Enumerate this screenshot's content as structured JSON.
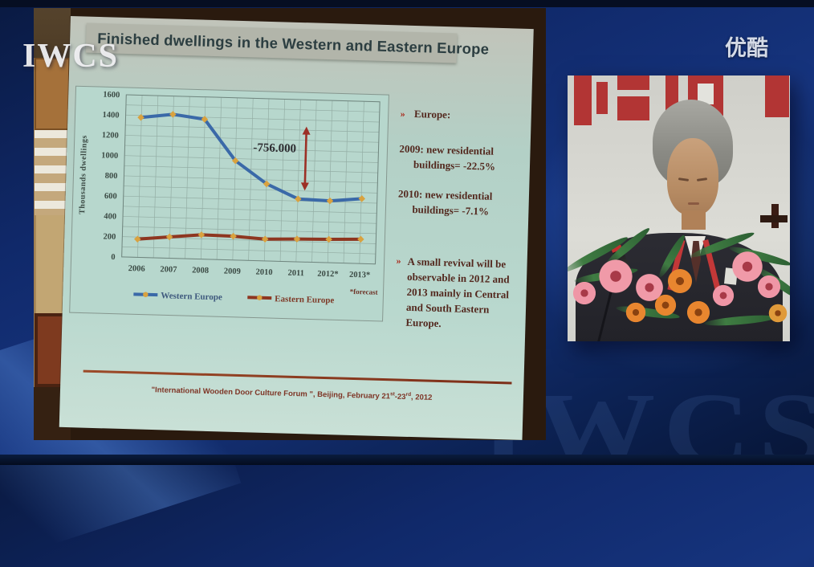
{
  "watermarks": {
    "iwcs_top": "IWCS",
    "iwcs_faint": "IWCS",
    "youku": "优酷"
  },
  "slide": {
    "title": "Finished dwellings in the Western and Eastern Europe",
    "right_panel": {
      "bullet_char": "»",
      "europe_heading": "Europe:",
      "line_2009_a": "2009: new residential",
      "line_2009_b": "buildings= -22.5%",
      "line_2010_a": "2010: new residential",
      "line_2010_b": "buildings= -7.1%",
      "revival_l1": "A small revival will be",
      "revival_l2": "observable in 2012 and",
      "revival_l3": "2013 mainly in Central",
      "revival_l4": "and South Eastern",
      "revival_l5": "Europe."
    },
    "footer": {
      "p1": "\"International Wooden Door Culture Forum \", Beijing, February 21",
      "sup1": "st",
      "p2": "-23",
      "sup2": "rd",
      "p3": ", 2012"
    }
  },
  "chart_data": {
    "type": "line",
    "title": "Finished dwellings in the Western and Eastern Europe",
    "ylabel": "Thousands dwellings",
    "categories": [
      "2006",
      "2007",
      "2008",
      "2009",
      "2010",
      "2011",
      "2012*",
      "2013*"
    ],
    "series": [
      {
        "name": "Western Europe",
        "color": "#3a69a8",
        "values": [
          1380,
          1420,
          1380,
          980,
          760,
          620,
          610,
          640
        ]
      },
      {
        "name": "Eastern Europe",
        "color": "#8e3620",
        "values": [
          180,
          210,
          240,
          235,
          215,
          225,
          230,
          240
        ]
      }
    ],
    "ylim": [
      0,
      1600
    ],
    "ytick_step": 200,
    "grid": true,
    "legend_position": "bottom",
    "marker_color": "#d9a23f",
    "annotation": {
      "text": "-756.000",
      "category": "2011",
      "from": 720,
      "to": 1320
    },
    "footnote": "*forecast"
  }
}
